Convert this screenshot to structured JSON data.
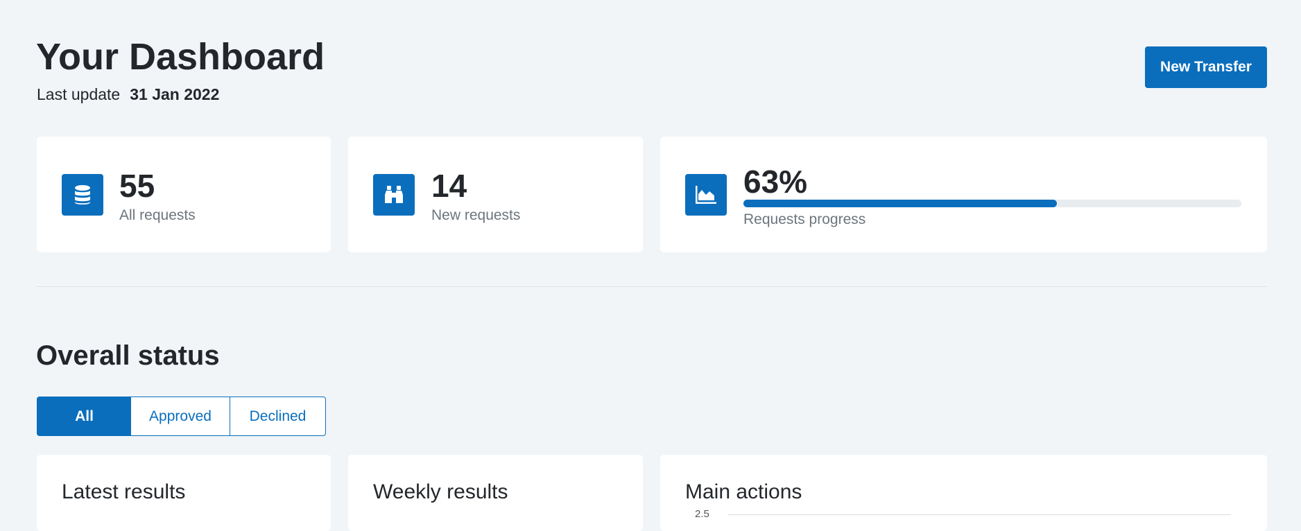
{
  "header": {
    "title": "Your Dashboard",
    "update_label": "Last update",
    "update_date": "31 Jan 2022",
    "button": "New Transfer"
  },
  "stats": [
    {
      "value": 55,
      "label": "All requests"
    },
    {
      "value": 14,
      "label": "New requests"
    },
    {
      "value": 63,
      "value_label": "63%",
      "label": "Requests progress"
    }
  ],
  "section": {
    "title": "Overall status",
    "tabs": [
      "All",
      "Approved",
      "Declined"
    ]
  },
  "cards": [
    {
      "title": "Latest results"
    },
    {
      "title": "Weekly results"
    },
    {
      "title": "Main actions",
      "yticks": [
        2.5
      ]
    }
  ]
}
